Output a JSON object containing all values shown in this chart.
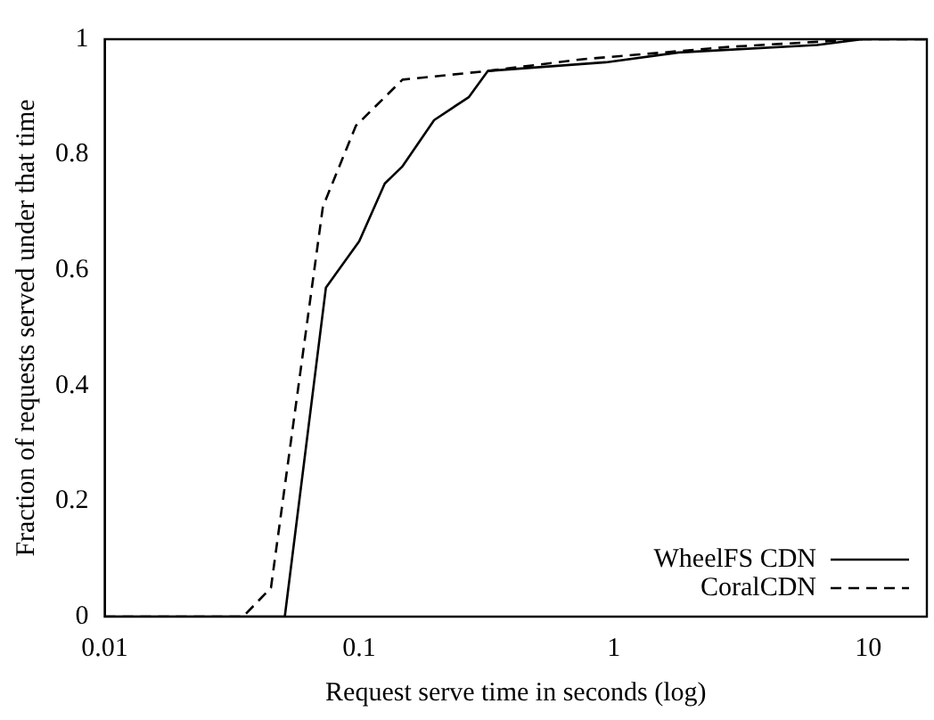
{
  "chart_data": {
    "type": "line",
    "xlabel": "Request serve time in seconds (log)",
    "ylabel": "Fraction of requests served under that time",
    "log": "x",
    "xlim": [
      0.01,
      17
    ],
    "xticks": [
      0.01,
      0.1,
      1,
      10
    ],
    "ylim": [
      0,
      1
    ],
    "yticks": [
      0,
      0.2,
      0.4,
      0.6,
      0.8,
      1
    ],
    "grid": false,
    "legend": "bottom right",
    "marker": "none",
    "series": [
      {
        "name": "WheelFS CDN",
        "color": "#000000",
        "line_style": "solid",
        "x": [
          0.01,
          0.051,
          0.074,
          0.1,
          0.126,
          0.148,
          0.197,
          0.27,
          0.32,
          0.93,
          1.8,
          6.3,
          9.5,
          17
        ],
        "values": [
          0,
          0,
          0.57,
          0.65,
          0.75,
          0.78,
          0.86,
          0.9,
          0.945,
          0.96,
          0.977,
          0.99,
          1,
          1
        ]
      },
      {
        "name": "CoralCDN",
        "color": "#000000",
        "line_style": "dashed",
        "x": [
          0.01,
          0.035,
          0.045,
          0.072,
          0.097,
          0.148,
          0.32,
          0.74,
          2.9,
          9.5,
          17
        ],
        "values": [
          0,
          0,
          0.05,
          0.71,
          0.85,
          0.93,
          0.945,
          0.965,
          0.987,
          1,
          1
        ]
      }
    ]
  }
}
